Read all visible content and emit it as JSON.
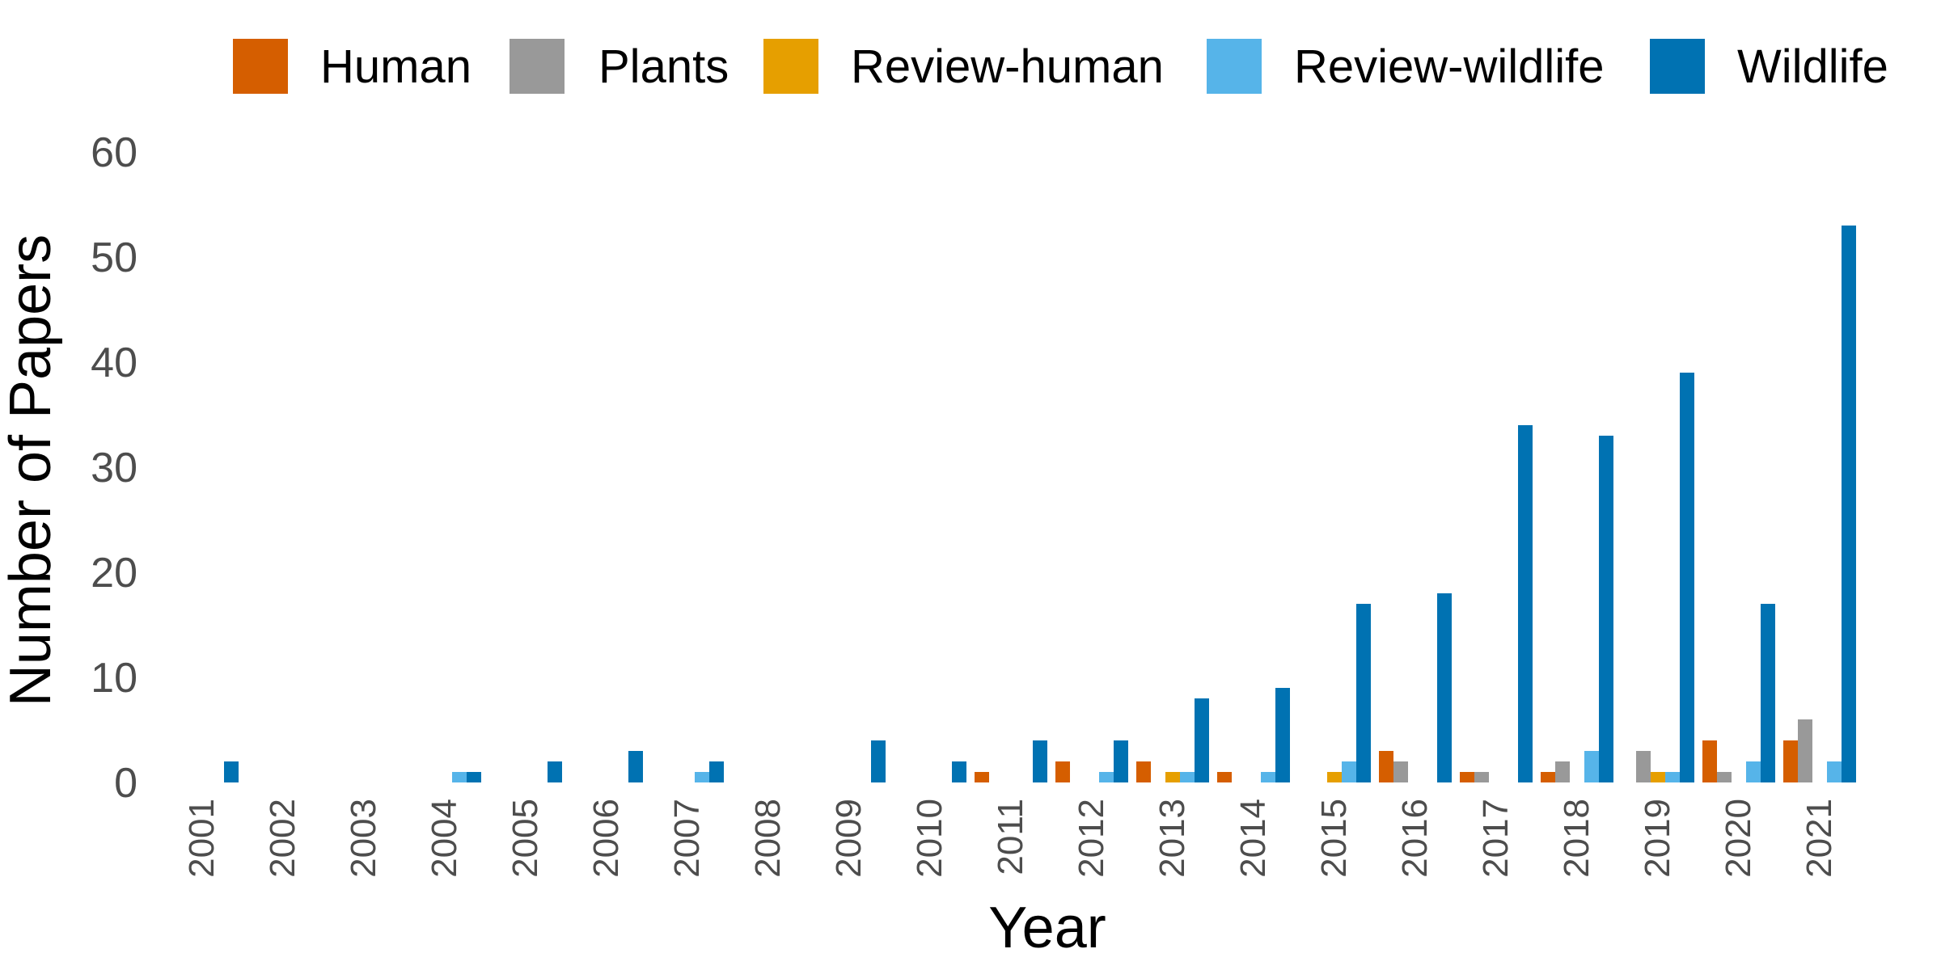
{
  "chart_data": {
    "type": "bar",
    "title": "",
    "xlabel": "Year",
    "ylabel": "Number of Papers",
    "ylim": [
      0,
      60
    ],
    "yticks": [
      "0",
      "10",
      "20",
      "30",
      "40",
      "50",
      "60"
    ],
    "grid": false,
    "legend_position": "top",
    "categories": [
      "2001",
      "2002",
      "2003",
      "2004",
      "2005",
      "2006",
      "2007",
      "2008",
      "2009",
      "2010",
      "2011",
      "2012",
      "2013",
      "2014",
      "2015",
      "2016",
      "2017",
      "2018",
      "2019",
      "2020",
      "2021"
    ],
    "series": [
      {
        "name": "Human",
        "color": "#D55E00",
        "values": [
          0,
          0,
          0,
          0,
          0,
          0,
          0,
          0,
          0,
          0,
          1,
          2,
          2,
          1,
          0,
          3,
          1,
          1,
          0,
          4,
          4
        ]
      },
      {
        "name": "Plants",
        "color": "#999999",
        "values": [
          0,
          0,
          0,
          0,
          0,
          0,
          0,
          0,
          0,
          0,
          0,
          0,
          0,
          0,
          0,
          2,
          1,
          2,
          3,
          1,
          6
        ]
      },
      {
        "name": "Review-human",
        "color": "#E69F00",
        "values": [
          0,
          0,
          0,
          0,
          0,
          0,
          0,
          0,
          0,
          0,
          0,
          0,
          1,
          0,
          1,
          0,
          0,
          0,
          1,
          0,
          0
        ]
      },
      {
        "name": "Review-wildlife",
        "color": "#56B4E9",
        "values": [
          0,
          0,
          0,
          1,
          0,
          0,
          1,
          0,
          0,
          0,
          0,
          1,
          1,
          1,
          2,
          0,
          0,
          3,
          1,
          2,
          2
        ]
      },
      {
        "name": "Wildlife",
        "color": "#0072B2",
        "values": [
          2,
          0,
          0,
          1,
          2,
          3,
          2,
          0,
          4,
          2,
          4,
          4,
          8,
          9,
          17,
          18,
          34,
          33,
          39,
          17,
          53
        ]
      }
    ]
  }
}
